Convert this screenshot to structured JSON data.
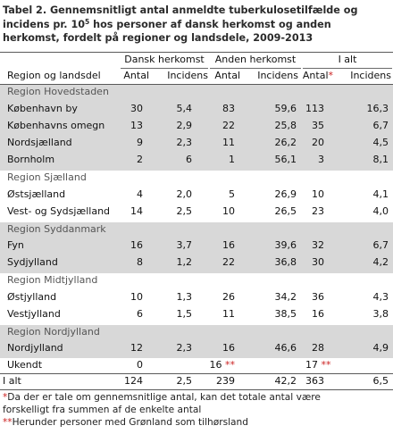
{
  "title_line1": "Tabel 2. Gennemsnitligt antal anmeldte tuberkulosetilfælde og",
  "title_line2_pre": "incidens pr. 10",
  "title_line2_sup": "5",
  "title_line2_post": " hos personer af dansk herkomst og anden",
  "title_line3": "herkomst, fordelt på regioner og landsdele, 2009-2013",
  "groups": {
    "dansk": "Dansk herkomst",
    "anden": "Anden herkomst",
    "ialt": "I alt"
  },
  "headers": {
    "region": "Region og landsdel",
    "antal": "Antal",
    "incidens": "Incidens",
    "antal_star": "*"
  },
  "regions": {
    "hovedstaden": "Region Hovedstaden",
    "sjaelland": "Region Sjælland",
    "syddanmark": "Region Syddanmark",
    "midtjylland": "Region Midtjylland",
    "nordjylland": "Region Nordjylland"
  },
  "rows": [
    {
      "name": "København by",
      "d_antal": "30",
      "d_inc": "5,4",
      "a_antal": "83",
      "a_inc": "59,6",
      "t_antal": "113",
      "t_inc": "16,3"
    },
    {
      "name": "Københavns omegn",
      "d_antal": "13",
      "d_inc": "2,9",
      "a_antal": "22",
      "a_inc": "25,8",
      "t_antal": "35",
      "t_inc": "6,7"
    },
    {
      "name": "Nordsjælland",
      "d_antal": "9",
      "d_inc": "2,3",
      "a_antal": "11",
      "a_inc": "26,2",
      "t_antal": "20",
      "t_inc": "4,5"
    },
    {
      "name": "Bornholm",
      "d_antal": "2",
      "d_inc": "6",
      "a_antal": "1",
      "a_inc": "56,1",
      "t_antal": "3",
      "t_inc": "8,1"
    },
    {
      "name": "Østsjælland",
      "d_antal": "4",
      "d_inc": "2,0",
      "a_antal": "5",
      "a_inc": "26,9",
      "t_antal": "10",
      "t_inc": "4,1"
    },
    {
      "name": "Vest- og Sydsjælland",
      "d_antal": "14",
      "d_inc": "2,5",
      "a_antal": "10",
      "a_inc": "26,5",
      "t_antal": "23",
      "t_inc": "4,0"
    },
    {
      "name": "Fyn",
      "d_antal": "16",
      "d_inc": "3,7",
      "a_antal": "16",
      "a_inc": "39,6",
      "t_antal": "32",
      "t_inc": "6,7"
    },
    {
      "name": "Sydjylland",
      "d_antal": "8",
      "d_inc": "1,2",
      "a_antal": "22",
      "a_inc": "36,8",
      "t_antal": "30",
      "t_inc": "4,2"
    },
    {
      "name": "Østjylland",
      "d_antal": "10",
      "d_inc": "1,3",
      "a_antal": "26",
      "a_inc": "34,2",
      "t_antal": "36",
      "t_inc": "4,3"
    },
    {
      "name": "Vestjylland",
      "d_antal": "6",
      "d_inc": "1,5",
      "a_antal": "11",
      "a_inc": "38,5",
      "t_antal": "16",
      "t_inc": "3,8"
    },
    {
      "name": "Nordjylland",
      "d_antal": "12",
      "d_inc": "2,3",
      "a_antal": "16",
      "a_inc": "46,6",
      "t_antal": "28",
      "t_inc": "4,9"
    }
  ],
  "ukendt": {
    "name": "Ukendt",
    "d_antal": "0",
    "a_antal": "16",
    "a_mark": "**",
    "t_antal": "17",
    "t_mark": "**"
  },
  "total": {
    "name": "I alt",
    "d_antal": "124",
    "d_inc": "2,5",
    "a_antal": "239",
    "a_inc": "42,2",
    "t_antal": "363",
    "t_inc": "6,5"
  },
  "footnotes": {
    "f1_mark": "*",
    "f1_line1": "Da der er tale om gennemsnitlige antal, kan det totale antal være",
    "f1_line2": "forskelligt fra summen af de enkelte antal",
    "f2_mark": "**",
    "f2_text": "Herunder personer med Grønland som tilhørsland"
  },
  "colors": {
    "shade": "#d8d8d8",
    "region_text": "#555555",
    "footnote_mark": "#cc2222"
  }
}
